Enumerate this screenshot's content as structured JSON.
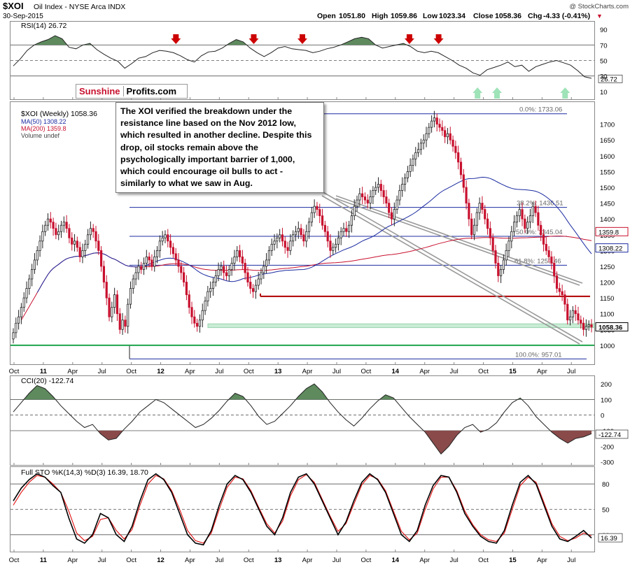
{
  "header": {
    "symbol": "$XOI",
    "name": "Oil Index - NYSE Arca INDX",
    "date": "30-Sep-2015",
    "open_label": "Open",
    "open": "1051.80",
    "high_label": "High",
    "high": "1059.86",
    "low_label": "Low",
    "low": "1023.34",
    "close_label": "Close",
    "close": "1058.36",
    "chg_label": "Chg",
    "chg": "-4.33 (-0.41%)",
    "chg_arrow": "▼",
    "watermark": "@ StockCharts.com"
  },
  "logo": {
    "part1": "Sunshine",
    "part2": "Profits.com"
  },
  "annotation": "The XOI verified the breakdown under the resistance line based on the Nov 2012 low, which resulted in another decline. Despite this drop, oil stocks remain above the psychologically important barrier of 1,000, which could encourage oil bulls to act - similarly to what we saw in Aug.",
  "colors": {
    "bull": "#222222",
    "bear": "#c8102e",
    "ma50": "#1c2ba0",
    "ma200": "#c8102e",
    "support_green": "#1fa54b",
    "resistance_red": "#b00000",
    "fib": "#1c2ba0",
    "zone": "#c9ecd5",
    "osc_fill_pos": "#5e8a5e",
    "osc_fill_neg": "#8a4a4a",
    "arrow_down": "#cc0000",
    "arrow_up": "#9fe3b8"
  },
  "chart_data": [
    {
      "type": "line",
      "panel": "RSI",
      "label": "RSI(14) 26.72",
      "last_value": 26.72,
      "ylim": [
        0,
        100
      ],
      "yticks": [
        10,
        30,
        50,
        70,
        90
      ],
      "levels": [
        30,
        50,
        70
      ],
      "sell_signals_at": [
        "2012-03",
        "2012-11",
        "2013-04",
        "2014-03",
        "2014-06"
      ],
      "buy_signals_at": [
        "2014-10",
        "2014-12",
        "2015-07"
      ],
      "values": [
        43,
        52,
        63,
        70,
        74,
        77,
        82,
        78,
        67,
        65,
        70,
        72,
        64,
        58,
        53,
        49,
        40,
        46,
        53,
        55,
        60,
        63,
        62,
        60,
        56,
        51,
        48,
        56,
        61,
        62,
        66,
        72,
        77,
        74,
        66,
        60,
        55,
        60,
        66,
        68,
        65,
        64,
        63,
        60,
        62,
        65,
        67,
        70,
        74,
        78,
        80,
        78,
        70,
        66,
        68,
        70,
        72,
        68,
        62,
        60,
        62,
        60,
        55,
        50,
        44,
        40,
        34,
        31,
        38,
        41,
        44,
        48,
        42,
        44,
        36,
        42,
        45,
        48,
        50,
        47,
        44,
        37,
        29,
        27
      ]
    },
    {
      "type": "candlestick",
      "panel": "price",
      "label": "$XOI (Weekly) 1058.36",
      "x_range": [
        "2010-10",
        "2015-09"
      ],
      "xticks": [
        "Oct",
        "11",
        "Apr",
        "Jul",
        "Oct",
        "12",
        "Apr",
        "Jul",
        "Oct",
        "13",
        "Apr",
        "Jul",
        "Oct",
        "14",
        "Apr",
        "Jul",
        "Oct",
        "15",
        "Apr",
        "Jul"
      ],
      "ylim": [
        940,
        1770
      ],
      "yticks": [
        1000,
        1050,
        1100,
        1150,
        1200,
        1250,
        1300,
        1350,
        1400,
        1450,
        1500,
        1550,
        1600,
        1650,
        1700
      ],
      "last_close": 1058.36,
      "weekly_closes": [
        1040,
        1070,
        1090,
        1120,
        1150,
        1180,
        1210,
        1240,
        1270,
        1300,
        1330,
        1360,
        1380,
        1400,
        1390,
        1370,
        1350,
        1360,
        1380,
        1390,
        1370,
        1340,
        1320,
        1330,
        1310,
        1280,
        1300,
        1320,
        1350,
        1370,
        1360,
        1330,
        1300,
        1250,
        1200,
        1150,
        1090,
        1120,
        1160,
        1100,
        1050,
        1080,
        1060,
        1130,
        1180,
        1210,
        1230,
        1250,
        1240,
        1260,
        1280,
        1270,
        1250,
        1280,
        1300,
        1330,
        1340,
        1350,
        1330,
        1310,
        1290,
        1270,
        1250,
        1230,
        1200,
        1160,
        1120,
        1090,
        1070,
        1060,
        1080,
        1110,
        1140,
        1170,
        1180,
        1200,
        1220,
        1240,
        1250,
        1230,
        1220,
        1240,
        1260,
        1280,
        1300,
        1280,
        1260,
        1230,
        1200,
        1180,
        1170,
        1190,
        1210,
        1230,
        1250,
        1270,
        1300,
        1320,
        1330,
        1340,
        1350,
        1330,
        1310,
        1300,
        1330,
        1350,
        1360,
        1370,
        1350,
        1330,
        1360,
        1390,
        1420,
        1440,
        1430,
        1410,
        1380,
        1360,
        1330,
        1300,
        1310,
        1320,
        1340,
        1360,
        1370,
        1360,
        1380,
        1410,
        1440,
        1460,
        1480,
        1470,
        1460,
        1450,
        1470,
        1490,
        1500,
        1510,
        1490,
        1470,
        1450,
        1420,
        1400,
        1430,
        1460,
        1490,
        1510,
        1530,
        1550,
        1570,
        1590,
        1610,
        1620,
        1640,
        1650,
        1670,
        1690,
        1710,
        1720,
        1700,
        1690,
        1680,
        1660,
        1670,
        1650,
        1630,
        1610,
        1580,
        1540,
        1500,
        1450,
        1400,
        1350,
        1380,
        1420,
        1450,
        1430,
        1400,
        1370,
        1340,
        1300,
        1260,
        1220,
        1240,
        1270,
        1300,
        1330,
        1360,
        1390,
        1410,
        1430,
        1400,
        1370,
        1390,
        1410,
        1440,
        1420,
        1380,
        1350,
        1320,
        1300,
        1280,
        1260,
        1220,
        1180,
        1170,
        1160,
        1130,
        1080,
        1090,
        1110,
        1100,
        1080,
        1070,
        1050,
        1060,
        1065,
        1058
      ],
      "ma": [
        {
          "name": "MA(50)",
          "value": 1308.22
        },
        {
          "name": "MA(200)",
          "value": 1359.8
        }
      ],
      "volume_label": "Volume undef",
      "fibonacci": [
        {
          "label": "0.0%: 1733.06",
          "value": 1733.06
        },
        {
          "label": "38.2%: 1436.51",
          "value": 1436.51
        },
        {
          "label": "50.0%: 1345.04",
          "value": 1345.04
        },
        {
          "label": "61.8%: 1253.46",
          "value": 1253.46
        },
        {
          "label": "100.0%: 957.01",
          "value": 957.01
        }
      ],
      "support_line": 1000,
      "resistance_line": 1155,
      "support_zone": [
        1056,
        1068
      ]
    },
    {
      "type": "line",
      "panel": "CCI",
      "label": "CCI(20) -122.74",
      "last_value": -122.74,
      "ylim": [
        -320,
        250
      ],
      "yticks": [
        -300,
        -200,
        -100,
        0,
        100,
        200
      ],
      "levels": [
        100,
        0,
        -100
      ],
      "values": [
        20,
        80,
        140,
        190,
        170,
        120,
        60,
        10,
        -40,
        -80,
        -60,
        -120,
        -160,
        -150,
        -90,
        -40,
        20,
        60,
        100,
        80,
        40,
        0,
        -40,
        -80,
        -60,
        -20,
        30,
        90,
        140,
        120,
        60,
        -10,
        -60,
        -40,
        10,
        60,
        120,
        170,
        200,
        150,
        80,
        20,
        -30,
        -70,
        -20,
        40,
        90,
        130,
        110,
        50,
        -10,
        -60,
        -110,
        -180,
        -250,
        -200,
        -130,
        -80,
        -60,
        -110,
        -90,
        -50,
        20,
        80,
        110,
        60,
        -10,
        -60,
        -110,
        -150,
        -180,
        -150,
        -140,
        -120
      ]
    },
    {
      "type": "line",
      "panel": "Full STO",
      "label": "Full STO %K(14,3) %D(3) 16.39, 18.70",
      "last_value": 16.39,
      "ylim": [
        0,
        100
      ],
      "yticks": [
        20,
        50,
        80
      ],
      "levels": [
        20,
        50,
        80
      ],
      "series": [
        {
          "name": "%K",
          "values": [
            60,
            75,
            85,
            92,
            88,
            78,
            70,
            40,
            15,
            10,
            20,
            45,
            40,
            20,
            12,
            30,
            60,
            85,
            92,
            85,
            70,
            45,
            20,
            10,
            8,
            25,
            55,
            80,
            90,
            85,
            70,
            50,
            30,
            20,
            40,
            70,
            88,
            92,
            80,
            60,
            40,
            20,
            35,
            60,
            82,
            92,
            85,
            70,
            45,
            20,
            12,
            25,
            55,
            78,
            90,
            88,
            70,
            45,
            30,
            18,
            12,
            10,
            25,
            55,
            82,
            90,
            80,
            55,
            30,
            15,
            12,
            18,
            25,
            16
          ]
        },
        {
          "name": "%D",
          "values": [
            55,
            70,
            82,
            90,
            88,
            80,
            70,
            48,
            22,
            13,
            18,
            38,
            40,
            25,
            15,
            26,
            55,
            80,
            90,
            86,
            72,
            50,
            25,
            13,
            10,
            22,
            50,
            76,
            88,
            86,
            72,
            52,
            33,
            22,
            36,
            66,
            85,
            91,
            82,
            62,
            42,
            24,
            33,
            56,
            79,
            90,
            86,
            72,
            48,
            24,
            14,
            22,
            50,
            74,
            88,
            88,
            72,
            48,
            32,
            20,
            14,
            12,
            22,
            50,
            78,
            88,
            82,
            58,
            33,
            18,
            13,
            16,
            22,
            18.7
          ]
        }
      ]
    }
  ]
}
